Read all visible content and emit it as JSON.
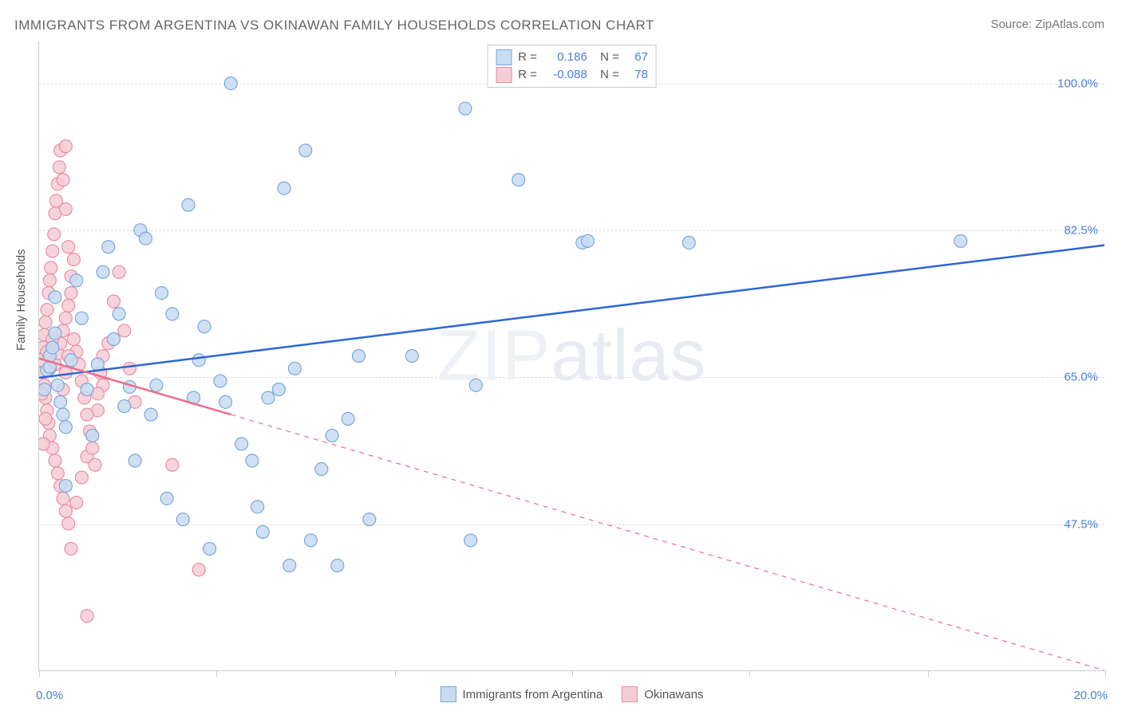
{
  "title": "IMMIGRANTS FROM ARGENTINA VS OKINAWAN FAMILY HOUSEHOLDS CORRELATION CHART",
  "source_label": "Source: ZipAtlas.com",
  "ylabel": "Family Households",
  "watermark": "ZIPatlas",
  "chart": {
    "type": "scatter",
    "background_color": "#ffffff",
    "grid_color": "#dddddd",
    "axis_color": "#cccccc",
    "xlim": [
      0,
      20
    ],
    "ylim": [
      30,
      105
    ],
    "xtick_positions": [
      0,
      3.33,
      6.67,
      10,
      13.33,
      16.67,
      20
    ],
    "xtick_label_left": "0.0%",
    "xtick_label_right": "20.0%",
    "ytick_lines": [
      47.5,
      65.0,
      82.5,
      100.0
    ],
    "ytick_labels": [
      "47.5%",
      "65.0%",
      "82.5%",
      "100.0%"
    ],
    "label_color": "#4a7fd6",
    "label_fontsize": 15,
    "series": [
      {
        "name": "Immigrants from Argentina",
        "marker_fill": "#c7dbf2",
        "marker_stroke": "#7ba7db",
        "marker_radius": 8,
        "trend_color": "#2c66d6",
        "trend_width": 2.5,
        "trend_start": [
          0,
          64.9
        ],
        "trend_end": [
          20,
          80.7
        ],
        "trend_dash_after_x": null,
        "R": "0.186",
        "N": "67",
        "points": [
          [
            0.1,
            63.5
          ],
          [
            0.15,
            65.8
          ],
          [
            0.2,
            66.2
          ],
          [
            0.2,
            67.5
          ],
          [
            0.25,
            68.5
          ],
          [
            0.3,
            70.2
          ],
          [
            0.3,
            74.5
          ],
          [
            0.35,
            64.0
          ],
          [
            0.4,
            62.0
          ],
          [
            0.45,
            60.5
          ],
          [
            0.5,
            59.0
          ],
          [
            0.6,
            67.0
          ],
          [
            0.7,
            76.5
          ],
          [
            0.8,
            72.0
          ],
          [
            0.9,
            63.5
          ],
          [
            1.0,
            58.0
          ],
          [
            1.1,
            66.5
          ],
          [
            1.2,
            77.5
          ],
          [
            1.3,
            80.5
          ],
          [
            1.4,
            69.5
          ],
          [
            1.5,
            72.5
          ],
          [
            1.6,
            61.5
          ],
          [
            1.7,
            63.8
          ],
          [
            1.8,
            55.0
          ],
          [
            1.9,
            82.5
          ],
          [
            2.0,
            81.5
          ],
          [
            2.1,
            60.5
          ],
          [
            2.2,
            64.0
          ],
          [
            2.3,
            75.0
          ],
          [
            2.5,
            72.5
          ],
          [
            2.7,
            48.0
          ],
          [
            2.8,
            85.5
          ],
          [
            2.9,
            62.5
          ],
          [
            3.0,
            67.0
          ],
          [
            3.1,
            71.0
          ],
          [
            3.2,
            44.5
          ],
          [
            3.4,
            64.5
          ],
          [
            3.5,
            62.0
          ],
          [
            3.6,
            100.0
          ],
          [
            3.8,
            57.0
          ],
          [
            4.0,
            55.0
          ],
          [
            4.1,
            49.5
          ],
          [
            4.2,
            46.5
          ],
          [
            4.3,
            62.5
          ],
          [
            4.5,
            63.5
          ],
          [
            4.6,
            87.5
          ],
          [
            4.7,
            42.5
          ],
          [
            4.8,
            66.0
          ],
          [
            5.0,
            92.0
          ],
          [
            5.1,
            45.5
          ],
          [
            5.3,
            54.0
          ],
          [
            5.5,
            58.0
          ],
          [
            5.6,
            42.5
          ],
          [
            5.8,
            60.0
          ],
          [
            6.0,
            67.5
          ],
          [
            6.2,
            48.0
          ],
          [
            7.0,
            67.5
          ],
          [
            8.0,
            97.0
          ],
          [
            8.1,
            45.5
          ],
          [
            8.2,
            64.0
          ],
          [
            9.0,
            88.5
          ],
          [
            10.2,
            81.0
          ],
          [
            10.3,
            81.2
          ],
          [
            12.2,
            81.0
          ],
          [
            17.3,
            81.2
          ],
          [
            0.5,
            52.0
          ],
          [
            2.4,
            50.5
          ]
        ]
      },
      {
        "name": "Okinawans",
        "marker_fill": "#f6cdd6",
        "marker_stroke": "#e98da4",
        "marker_radius": 8,
        "trend_color": "#ee6d8a",
        "trend_width": 2.5,
        "trend_start": [
          0,
          67.2
        ],
        "trend_end": [
          20,
          30.0
        ],
        "trend_dash_after_x": 3.6,
        "R": "-0.088",
        "N": "78",
        "points": [
          [
            0.05,
            67.0
          ],
          [
            0.08,
            68.5
          ],
          [
            0.1,
            70.0
          ],
          [
            0.12,
            71.5
          ],
          [
            0.15,
            73.0
          ],
          [
            0.18,
            75.0
          ],
          [
            0.2,
            76.5
          ],
          [
            0.22,
            78.0
          ],
          [
            0.25,
            80.0
          ],
          [
            0.28,
            82.0
          ],
          [
            0.3,
            84.5
          ],
          [
            0.32,
            86.0
          ],
          [
            0.35,
            88.0
          ],
          [
            0.38,
            90.0
          ],
          [
            0.4,
            92.0
          ],
          [
            0.45,
            88.5
          ],
          [
            0.5,
            85.0
          ],
          [
            0.55,
            80.5
          ],
          [
            0.6,
            77.0
          ],
          [
            0.08,
            65.5
          ],
          [
            0.1,
            64.0
          ],
          [
            0.12,
            62.5
          ],
          [
            0.15,
            61.0
          ],
          [
            0.18,
            59.5
          ],
          [
            0.2,
            58.0
          ],
          [
            0.25,
            56.5
          ],
          [
            0.3,
            55.0
          ],
          [
            0.35,
            53.5
          ],
          [
            0.4,
            52.0
          ],
          [
            0.45,
            50.5
          ],
          [
            0.5,
            49.0
          ],
          [
            0.55,
            47.5
          ],
          [
            0.6,
            44.5
          ],
          [
            0.7,
            50.0
          ],
          [
            0.8,
            53.0
          ],
          [
            0.9,
            55.5
          ],
          [
            1.0,
            58.0
          ],
          [
            1.1,
            61.0
          ],
          [
            1.2,
            64.0
          ],
          [
            0.3,
            66.5
          ],
          [
            0.35,
            67.8
          ],
          [
            0.4,
            69.0
          ],
          [
            0.45,
            70.5
          ],
          [
            0.5,
            72.0
          ],
          [
            0.55,
            73.5
          ],
          [
            0.6,
            75.0
          ],
          [
            0.65,
            69.5
          ],
          [
            0.7,
            68.0
          ],
          [
            0.75,
            66.5
          ],
          [
            0.8,
            64.5
          ],
          [
            0.85,
            62.5
          ],
          [
            0.9,
            60.5
          ],
          [
            0.95,
            58.5
          ],
          [
            1.0,
            56.5
          ],
          [
            1.05,
            54.5
          ],
          [
            1.1,
            63.0
          ],
          [
            1.15,
            65.5
          ],
          [
            1.2,
            67.5
          ],
          [
            1.3,
            69.0
          ],
          [
            1.4,
            74.0
          ],
          [
            1.5,
            77.5
          ],
          [
            1.6,
            70.5
          ],
          [
            1.7,
            66.0
          ],
          [
            1.8,
            62.0
          ],
          [
            0.15,
            68.0
          ],
          [
            0.2,
            66.0
          ],
          [
            0.25,
            69.5
          ],
          [
            0.12,
            60.0
          ],
          [
            0.08,
            57.0
          ],
          [
            0.05,
            63.0
          ],
          [
            0.45,
            63.5
          ],
          [
            0.5,
            65.5
          ],
          [
            0.55,
            67.5
          ],
          [
            2.5,
            54.5
          ],
          [
            3.0,
            42.0
          ],
          [
            0.9,
            36.5
          ],
          [
            0.5,
            92.5
          ],
          [
            0.65,
            79.0
          ]
        ]
      }
    ]
  },
  "legend_bottom": {
    "items": [
      "Immigrants from Argentina",
      "Okinawans"
    ]
  }
}
